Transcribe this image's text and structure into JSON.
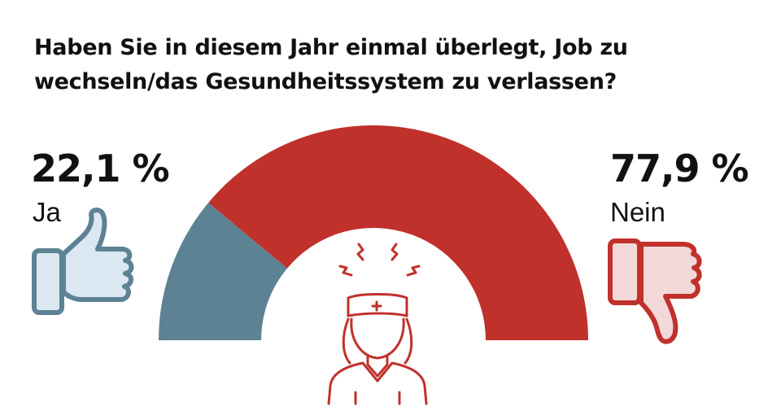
{
  "title": {
    "line1": "Haben Sie in diesem Jahr einmal überlegt, Job zu",
    "line2": "wechseln/das Gesundheitssystem zu verlassen?"
  },
  "colors": {
    "ja": "#5d8293",
    "nein": "#c0312b",
    "ja_icon_fill": "#dbe7f1",
    "nein_icon_fill": "#f2d8d8"
  },
  "icons": {
    "ja": "thumbs-up-icon",
    "nein": "thumbs-down-icon",
    "center": "stressed-nurse-icon"
  },
  "chart_data": {
    "type": "pie",
    "style": "semicircle-donut",
    "title": "Haben Sie in diesem Jahr einmal überlegt, Job zu wechseln/das Gesundheitssystem zu verlassen?",
    "categories": [
      "Ja",
      "Nein"
    ],
    "values": [
      22.1,
      77.9
    ],
    "value_labels": [
      "22,1 %",
      "77,9 %"
    ],
    "unit": "%"
  }
}
